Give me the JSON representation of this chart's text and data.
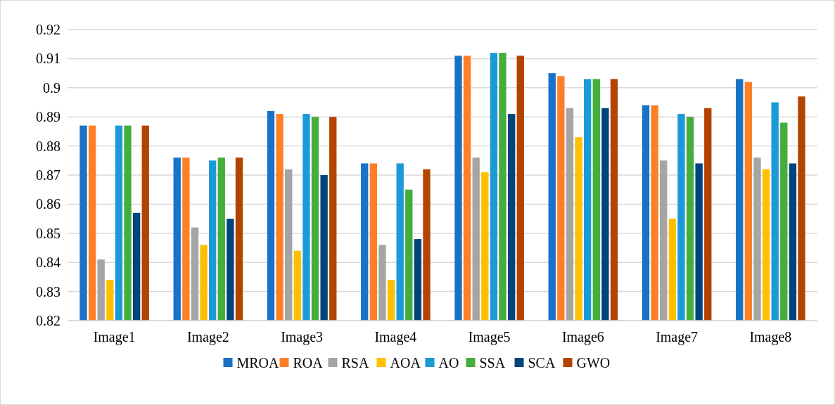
{
  "chart_data": {
    "type": "bar",
    "categories": [
      "Image1",
      "Image2",
      "Image3",
      "Image4",
      "Image5",
      "Image6",
      "Image7",
      "Image8"
    ],
    "series": [
      {
        "name": "MROA",
        "color": "#1772c8",
        "values": [
          0.887,
          0.876,
          0.892,
          0.874,
          0.911,
          0.905,
          0.894,
          0.903
        ]
      },
      {
        "name": "ROA",
        "color": "#ff7f27",
        "values": [
          0.887,
          0.876,
          0.891,
          0.874,
          0.911,
          0.904,
          0.894,
          0.902
        ]
      },
      {
        "name": "RSA",
        "color": "#a5a5a5",
        "values": [
          0.841,
          0.852,
          0.872,
          0.846,
          0.876,
          0.893,
          0.875,
          0.876
        ]
      },
      {
        "name": "AOA",
        "color": "#ffc000",
        "values": [
          0.834,
          0.846,
          0.844,
          0.834,
          0.871,
          0.883,
          0.855,
          0.872
        ]
      },
      {
        "name": "AO",
        "color": "#1c9ad8",
        "values": [
          0.887,
          0.875,
          0.891,
          0.874,
          0.912,
          0.903,
          0.891,
          0.895
        ]
      },
      {
        "name": "SSA",
        "color": "#44ae3c",
        "values": [
          0.887,
          0.876,
          0.89,
          0.865,
          0.912,
          0.903,
          0.89,
          0.888
        ]
      },
      {
        "name": "SCA",
        "color": "#00447c",
        "values": [
          0.857,
          0.855,
          0.87,
          0.848,
          0.891,
          0.893,
          0.874,
          0.874
        ]
      },
      {
        "name": "GWO",
        "color": "#b34400",
        "values": [
          0.887,
          0.876,
          0.89,
          0.872,
          0.911,
          0.903,
          0.893,
          0.897
        ]
      }
    ],
    "ylim": [
      0.82,
      0.92
    ],
    "yticks": [
      0.82,
      0.83,
      0.84,
      0.85,
      0.86,
      0.87,
      0.88,
      0.89,
      0.9,
      0.91,
      0.92
    ],
    "grid": "y",
    "legend": "bottom"
  }
}
